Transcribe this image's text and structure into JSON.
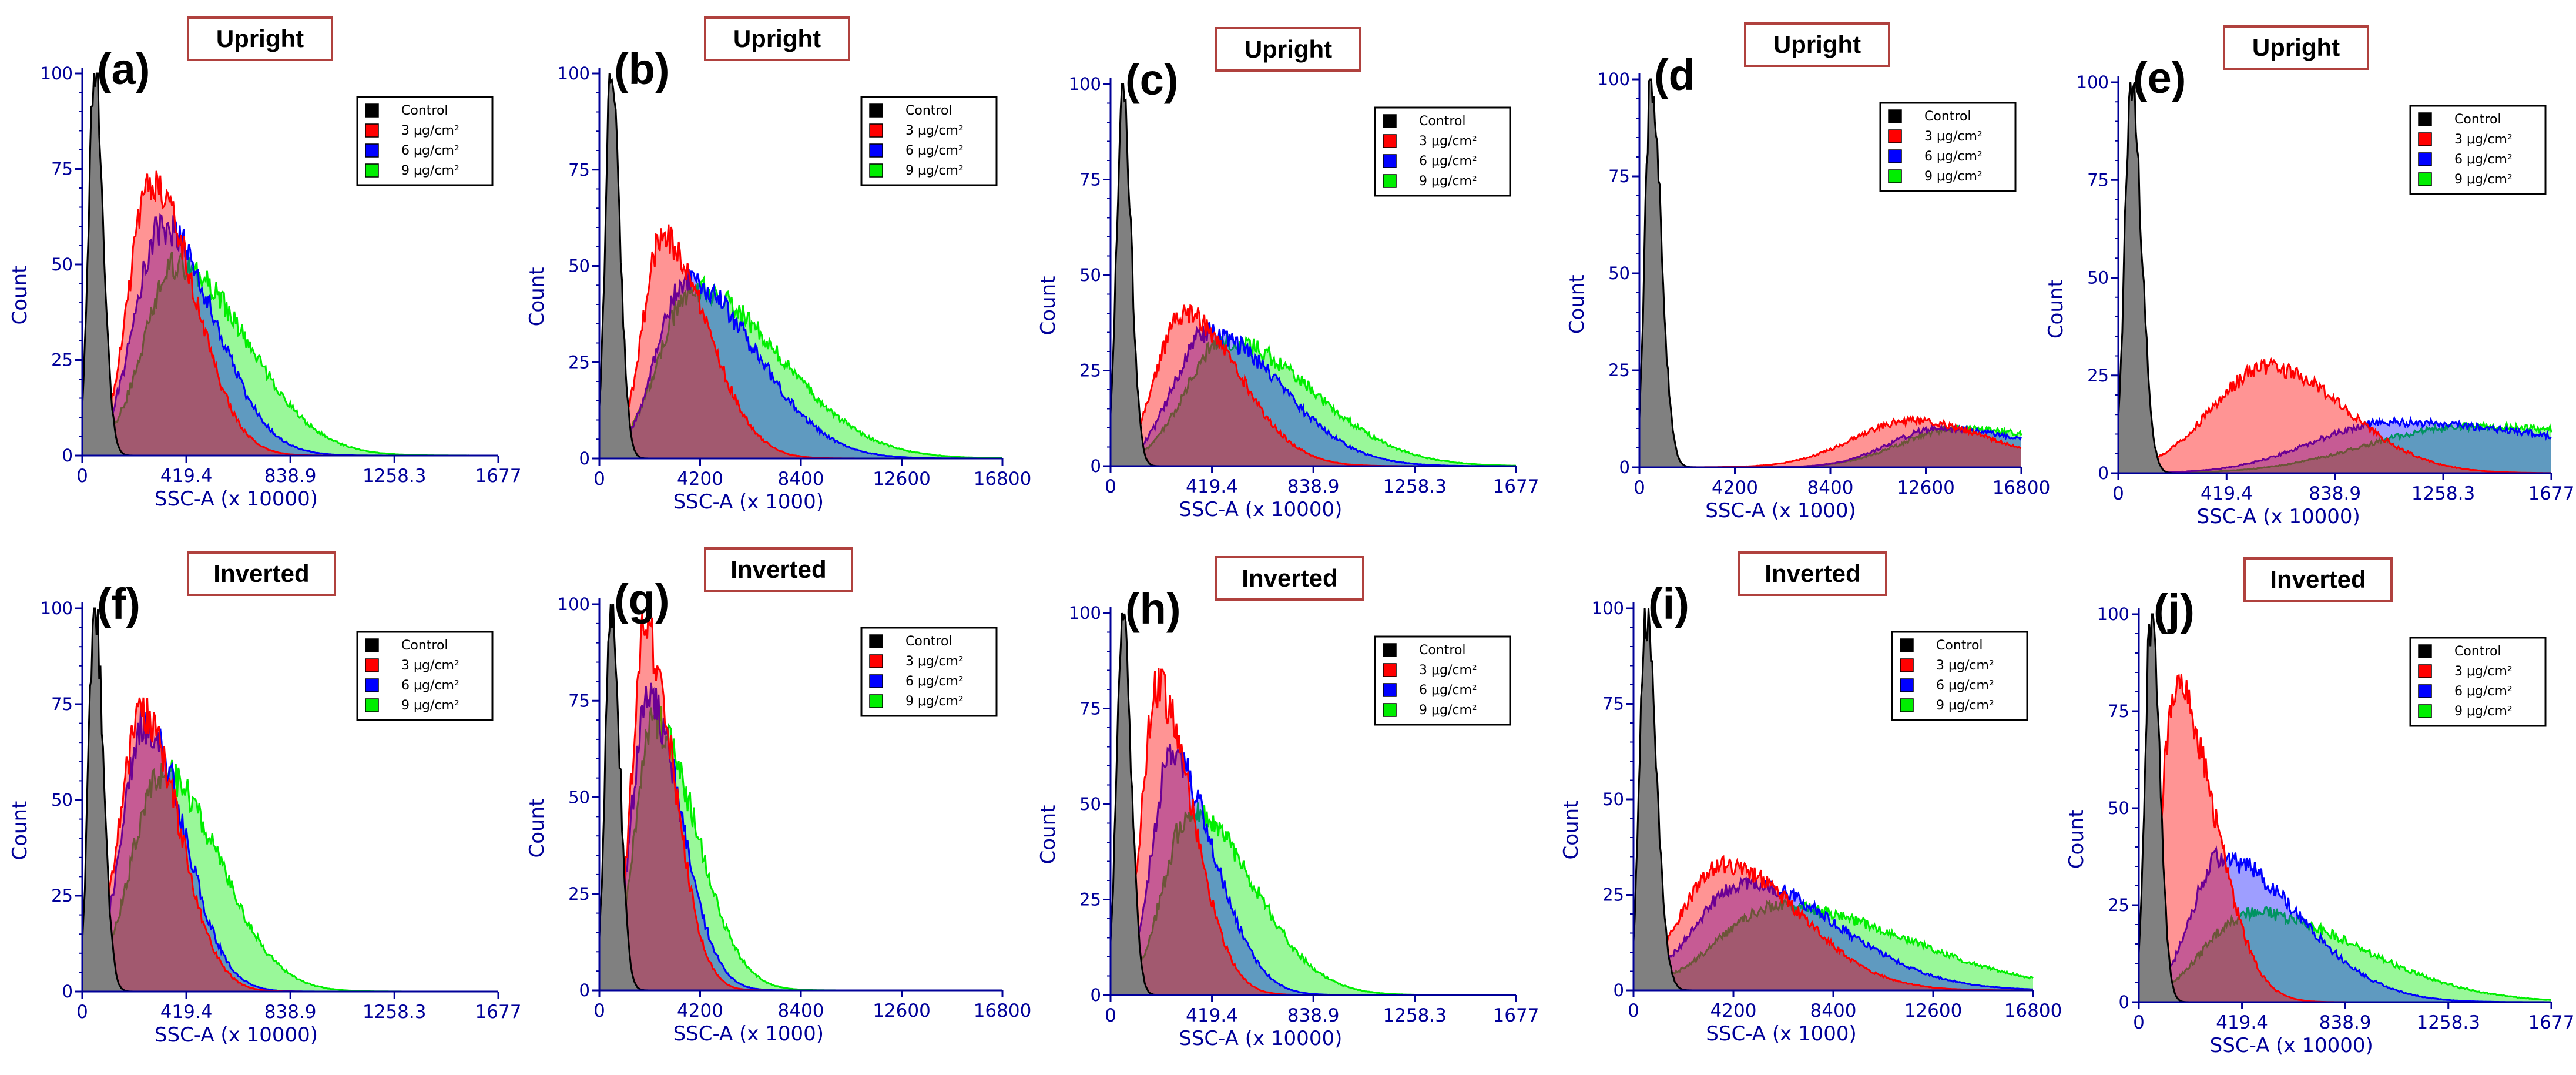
{
  "figure": {
    "legend_labels": [
      "Control",
      "3 μg/cm²",
      "6 μg/cm²",
      "9 μg/cm²"
    ],
    "colors": {
      "control": "#000000",
      "dose3": "#ff0000",
      "dose6": "#0000ff",
      "dose9": "#00ee00",
      "axis": "#000099",
      "tag_border": "#b0413e"
    }
  },
  "chart_data": [
    {
      "type": "area",
      "panel": "(a)",
      "tag": "Upright",
      "xlabel": "SSC-A (x 10000)",
      "ylabel": "Count",
      "xlim": [
        0,
        1677
      ],
      "ylim": [
        0,
        100
      ],
      "xticks": [
        0,
        419.4,
        838.9,
        1258.3,
        1677
      ],
      "xtick_labels": [
        "0",
        "419.4",
        "838.9",
        "1258.3",
        "1677"
      ],
      "yticks": [
        0,
        25,
        50,
        75,
        100
      ],
      "series": [
        {
          "name": "Control",
          "peak": 100,
          "peak_at": 50,
          "width_left": 25,
          "width_right": 35
        },
        {
          "name": "3 μg/cm²",
          "peak": 72,
          "peak_at": 280,
          "width_left": 90,
          "width_right": 170
        },
        {
          "name": "6 μg/cm²",
          "peak": 60,
          "peak_at": 320,
          "width_left": 110,
          "width_right": 210
        },
        {
          "name": "9 μg/cm²",
          "peak": 50,
          "peak_at": 380,
          "width_left": 130,
          "width_right": 280
        }
      ]
    },
    {
      "type": "area",
      "panel": "(b)",
      "tag": "Upright",
      "xlabel": "SSC-A (x 1000)",
      "ylabel": "Count",
      "xlim": [
        0,
        16800
      ],
      "ylim": [
        0,
        100
      ],
      "xticks": [
        0,
        4200,
        8400,
        12600,
        16800
      ],
      "xtick_labels": [
        "0",
        "4200",
        "8400",
        "12600",
        "16800"
      ],
      "yticks": [
        0,
        25,
        50,
        75,
        100
      ],
      "series": [
        {
          "name": "Control",
          "peak": 100,
          "peak_at": 500,
          "width_left": 250,
          "width_right": 350
        },
        {
          "name": "3 μg/cm²",
          "peak": 57,
          "peak_at": 2600,
          "width_left": 800,
          "width_right": 1900
        },
        {
          "name": "6 μg/cm²",
          "peak": 46,
          "peak_at": 3600,
          "width_left": 1200,
          "width_right": 2900
        },
        {
          "name": "9 μg/cm²",
          "peak": 44,
          "peak_at": 3900,
          "width_left": 1400,
          "width_right": 3600
        }
      ]
    },
    {
      "type": "area",
      "panel": "(c)",
      "tag": "Upright",
      "xlabel": "SSC-A (x 10000)",
      "ylabel": "Count",
      "xlim": [
        0,
        1677
      ],
      "ylim": [
        0,
        100
      ],
      "xticks": [
        0,
        419.4,
        838.9,
        1258.3,
        1677
      ],
      "xtick_labels": [
        "0",
        "419.4",
        "838.9",
        "1258.3",
        "1677"
      ],
      "yticks": [
        0,
        25,
        50,
        75,
        100
      ],
      "series": [
        {
          "name": "Control",
          "peak": 100,
          "peak_at": 50,
          "width_left": 25,
          "width_right": 35
        },
        {
          "name": "3 μg/cm²",
          "peak": 40,
          "peak_at": 300,
          "width_left": 110,
          "width_right": 230
        },
        {
          "name": "6 μg/cm²",
          "peak": 35,
          "peak_at": 400,
          "width_left": 140,
          "width_right": 300
        },
        {
          "name": "9 μg/cm²",
          "peak": 33,
          "peak_at": 470,
          "width_left": 160,
          "width_right": 360
        }
      ]
    },
    {
      "type": "area",
      "panel": "(d",
      "tag": "Upright",
      "xlabel": "SSC-A (x 1000)",
      "ylabel": "Count",
      "xlim": [
        0,
        16800
      ],
      "ylim": [
        0,
        100
      ],
      "xticks": [
        0,
        4200,
        8400,
        12600,
        16800
      ],
      "xtick_labels": [
        "0",
        "4200",
        "8400",
        "12600",
        "16800"
      ],
      "yticks": [
        0,
        25,
        50,
        75,
        100
      ],
      "series": [
        {
          "name": "Control",
          "peak": 100,
          "peak_at": 500,
          "width_left": 250,
          "width_right": 450
        },
        {
          "name": "3 μg/cm²",
          "peak": 12,
          "peak_at": 12000,
          "width_left": 2600,
          "width_right": 3500
        },
        {
          "name": "6 μg/cm²",
          "peak": 10,
          "peak_at": 13200,
          "width_left": 2200,
          "width_right": 4500
        },
        {
          "name": "9 μg/cm²",
          "peak": 10,
          "peak_at": 14000,
          "width_left": 2500,
          "width_right": 5000
        }
      ]
    },
    {
      "type": "area",
      "panel": "(e)",
      "tag": "Upright",
      "xlabel": "SSC-A (x 10000)",
      "ylabel": "Count",
      "xlim": [
        0,
        1677
      ],
      "ylim": [
        0,
        100
      ],
      "xticks": [
        0,
        419.4,
        838.9,
        1258.3,
        1677
      ],
      "xtick_labels": [
        "0",
        "419.4",
        "838.9",
        "1258.3",
        "1677"
      ],
      "yticks": [
        0,
        25,
        50,
        75,
        100
      ],
      "series": [
        {
          "name": "Control",
          "peak": 100,
          "peak_at": 50,
          "width_left": 25,
          "width_right": 40
        },
        {
          "name": "3 μg/cm²",
          "peak": 27,
          "peak_at": 580,
          "width_left": 220,
          "width_right": 300
        },
        {
          "name": "6 μg/cm²",
          "peak": 13,
          "peak_at": 1050,
          "width_left": 300,
          "width_right": 800
        },
        {
          "name": "9 μg/cm²",
          "peak": 12,
          "peak_at": 1350,
          "width_left": 380,
          "width_right": 900
        }
      ]
    },
    {
      "type": "area",
      "panel": "(f)",
      "tag": "Inverted",
      "xlabel": "SSC-A (x 10000)",
      "ylabel": "Count",
      "xlim": [
        0,
        1677
      ],
      "ylim": [
        0,
        100
      ],
      "xticks": [
        0,
        419.4,
        838.9,
        1258.3,
        1677
      ],
      "xtick_labels": [
        "0",
        "419.4",
        "838.9",
        "1258.3",
        "1677"
      ],
      "yticks": [
        0,
        25,
        50,
        75,
        100
      ],
      "series": [
        {
          "name": "Control",
          "peak": 100,
          "peak_at": 50,
          "width_left": 25,
          "width_right": 35
        },
        {
          "name": "3 μg/cm²",
          "peak": 72,
          "peak_at": 240,
          "width_left": 90,
          "width_right": 150
        },
        {
          "name": "6 μg/cm²",
          "peak": 70,
          "peak_at": 250,
          "width_left": 90,
          "width_right": 160
        },
        {
          "name": "9 μg/cm²",
          "peak": 57,
          "peak_at": 320,
          "width_left": 120,
          "width_right": 230
        }
      ]
    },
    {
      "type": "area",
      "panel": "(g)",
      "tag": "Inverted",
      "xlabel": "SSC-A (x 1000)",
      "ylabel": "Count",
      "xlim": [
        0,
        16800
      ],
      "ylim": [
        0,
        100
      ],
      "xticks": [
        0,
        4200,
        8400,
        12600,
        16800
      ],
      "xtick_labels": [
        "0",
        "4200",
        "8400",
        "12600",
        "16800"
      ],
      "yticks": [
        0,
        25,
        50,
        75,
        100
      ],
      "series": [
        {
          "name": "Control",
          "peak": 100,
          "peak_at": 500,
          "width_left": 250,
          "width_right": 350
        },
        {
          "name": "3 μg/cm²",
          "peak": 93,
          "peak_at": 1900,
          "width_left": 550,
          "width_right": 1200
        },
        {
          "name": "6 μg/cm²",
          "peak": 76,
          "peak_at": 2000,
          "width_left": 650,
          "width_right": 1400
        },
        {
          "name": "9 μg/cm²",
          "peak": 70,
          "peak_at": 2200,
          "width_left": 700,
          "width_right": 1800
        }
      ]
    },
    {
      "type": "area",
      "panel": "(h)",
      "tag": "Inverted",
      "xlabel": "SSC-A (x 10000)",
      "ylabel": "Count",
      "xlim": [
        0,
        1677
      ],
      "ylim": [
        0,
        100
      ],
      "xticks": [
        0,
        419.4,
        838.9,
        1258.3,
        1677
      ],
      "xtick_labels": [
        "0",
        "419.4",
        "838.9",
        "1258.3",
        "1677"
      ],
      "yticks": [
        0,
        25,
        50,
        75,
        100
      ],
      "series": [
        {
          "name": "Control",
          "peak": 100,
          "peak_at": 50,
          "width_left": 25,
          "width_right": 35
        },
        {
          "name": "3 μg/cm²",
          "peak": 80,
          "peak_at": 190,
          "width_left": 60,
          "width_right": 150
        },
        {
          "name": "6 μg/cm²",
          "peak": 62,
          "peak_at": 250,
          "width_left": 80,
          "width_right": 180
        },
        {
          "name": "9 μg/cm²",
          "peak": 48,
          "peak_at": 330,
          "width_left": 110,
          "width_right": 260
        }
      ]
    },
    {
      "type": "area",
      "panel": "(i)",
      "tag": "Inverted",
      "xlabel": "SSC-A (x 1000)",
      "ylabel": "Count",
      "xlim": [
        0,
        16800
      ],
      "ylim": [
        0,
        100
      ],
      "xticks": [
        0,
        4200,
        8400,
        12600,
        16800
      ],
      "xtick_labels": [
        "0",
        "4200",
        "8400",
        "12600",
        "16800"
      ],
      "yticks": [
        0,
        25,
        50,
        75,
        100
      ],
      "series": [
        {
          "name": "Control",
          "peak": 100,
          "peak_at": 500,
          "width_left": 250,
          "width_right": 450
        },
        {
          "name": "3 μg/cm²",
          "peak": 33,
          "peak_at": 3800,
          "width_left": 1800,
          "width_right": 3200
        },
        {
          "name": "6 μg/cm²",
          "peak": 28,
          "peak_at": 4600,
          "width_left": 2000,
          "width_right": 4000
        },
        {
          "name": "9 μg/cm²",
          "peak": 22,
          "peak_at": 6000,
          "width_left": 2400,
          "width_right": 5500
        }
      ]
    },
    {
      "type": "area",
      "panel": "(j)",
      "tag": "Inverted",
      "xlabel": "SSC-A (x 10000)",
      "ylabel": "Count",
      "xlim": [
        0,
        1677
      ],
      "ylim": [
        0,
        100
      ],
      "xticks": [
        0,
        419.4,
        838.9,
        1258.3,
        1677
      ],
      "xtick_labels": [
        "0",
        "419.4",
        "838.9",
        "1258.3",
        "1677"
      ],
      "yticks": [
        0,
        25,
        50,
        75,
        100
      ],
      "series": [
        {
          "name": "Control",
          "peak": 100,
          "peak_at": 50,
          "width_left": 25,
          "width_right": 35
        },
        {
          "name": "3 μg/cm²",
          "peak": 80,
          "peak_at": 150,
          "width_left": 60,
          "width_right": 160
        },
        {
          "name": "6 μg/cm²",
          "peak": 37,
          "peak_at": 330,
          "width_left": 120,
          "width_right": 320
        },
        {
          "name": "9 μg/cm²",
          "peak": 23,
          "peak_at": 450,
          "width_left": 180,
          "width_right": 450
        }
      ]
    }
  ]
}
